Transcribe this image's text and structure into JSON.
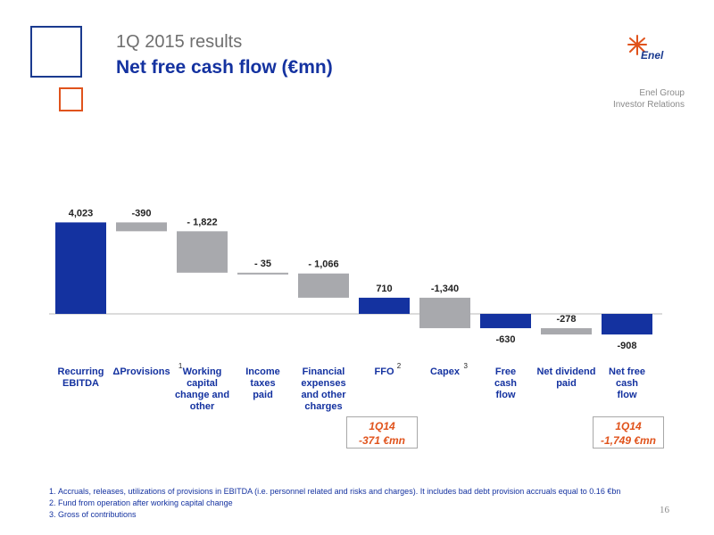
{
  "header": {
    "kicker": "1Q 2015 results",
    "title": "Net free cash flow (€mn)"
  },
  "brand": {
    "logo_text": "Enel",
    "org_line1": "Enel Group",
    "org_line2": "Investor Relations",
    "colors": {
      "navy": "#1432a0",
      "orange": "#e0531c",
      "grey": "#a8a9ad"
    }
  },
  "chart_data": {
    "type": "bar",
    "subtype": "waterfall",
    "categories": [
      [
        "Recurring",
        "EBITDA"
      ],
      [
        "ΔProvisions"
      ],
      [
        "Working",
        "capital",
        "change and",
        "other"
      ],
      [
        "Income",
        "taxes",
        "paid"
      ],
      [
        "Financial",
        "expenses",
        "and other",
        "charges"
      ],
      [
        "FFO"
      ],
      [
        "Capex"
      ],
      [
        "Free",
        "cash",
        "flow"
      ],
      [
        "Net dividend",
        "paid"
      ],
      [
        "Net free",
        "cash",
        "flow"
      ]
    ],
    "superscripts": [
      "",
      "1",
      "",
      "",
      "",
      "2",
      "3",
      "",
      "",
      ""
    ],
    "values": [
      4023,
      -390,
      -1822,
      -35,
      -1066,
      710,
      -1340,
      -630,
      -278,
      -908
    ],
    "value_labels": [
      "4,023",
      "-390",
      "- 1,822",
      "- 35",
      "- 1,066",
      "710",
      "-1,340",
      "-630",
      "-278",
      "-908"
    ],
    "kind": [
      "total",
      "delta",
      "delta",
      "delta",
      "delta",
      "total",
      "delta",
      "total",
      "delta",
      "total"
    ]
  },
  "callouts": [
    {
      "line1": "1Q14",
      "line2": "-371 €mn"
    },
    {
      "line1": "1Q14",
      "line2": "-1,749 €mn"
    }
  ],
  "footnotes": [
    "Accruals, releases, utilizations of provisions in EBITDA (i.e. personnel related and risks and charges). It includes bad debt provision accruals equal to 0.16 €bn",
    "Fund from operation after working capital change",
    "Gross of contributions"
  ],
  "page_number": "16"
}
